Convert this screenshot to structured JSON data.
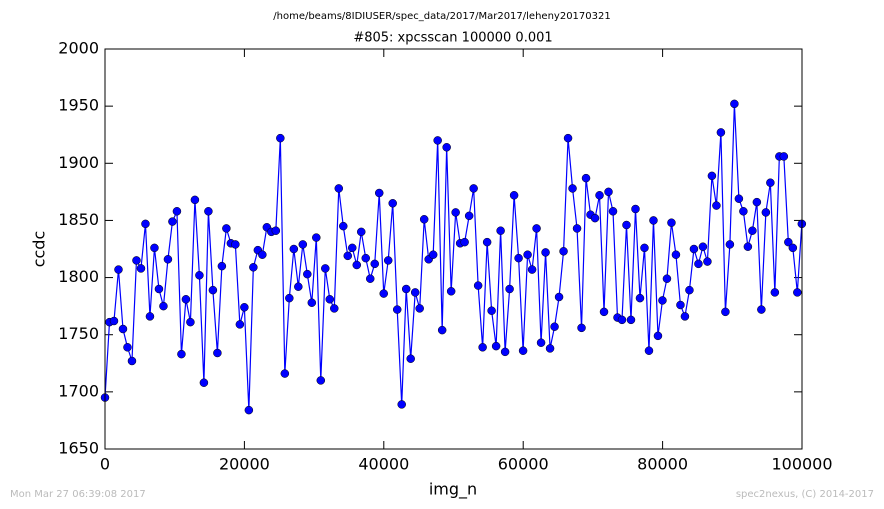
{
  "chart_data": {
    "type": "line",
    "suptitle": "/home/beams/8IDIUSER/spec_data/2017/Mar2017/leheny20170321",
    "title": "#805: xpcsscan 100000 0.001",
    "xlabel": "img_n",
    "ylabel": "ccdc",
    "footer_left": "Mon Mar 27 06:39:08 2017",
    "footer_right": "spec2nexus, (C) 2014-2017",
    "color": "#0000ff",
    "marker": "circle",
    "xlim": [
      0,
      100000
    ],
    "ylim": [
      1650,
      2000
    ],
    "xticks": [
      0,
      20000,
      40000,
      60000,
      80000,
      100000
    ],
    "yticks": [
      1650,
      1700,
      1750,
      1800,
      1850,
      1900,
      1950,
      2000
    ],
    "x": [
      0,
      645,
      1290,
      1935,
      2580,
      3225,
      3870,
      4515,
      5160,
      5805,
      6450,
      7095,
      7740,
      8385,
      9030,
      9675,
      10320,
      10965,
      11610,
      12255,
      12900,
      13545,
      14190,
      14835,
      15480,
      16125,
      16770,
      17415,
      18060,
      18705,
      19350,
      19995,
      20640,
      21285,
      21930,
      22575,
      23220,
      23865,
      24510,
      25155,
      25800,
      26445,
      27090,
      27735,
      28380,
      29025,
      29670,
      30315,
      30960,
      31605,
      32250,
      32895,
      33540,
      34185,
      34830,
      35475,
      36120,
      36765,
      37410,
      38055,
      38700,
      39345,
      39990,
      40635,
      41280,
      41925,
      42570,
      43215,
      43860,
      44505,
      45150,
      45795,
      46440,
      47085,
      47730,
      48375,
      49020,
      49665,
      50310,
      50955,
      51600,
      52245,
      52890,
      53535,
      54180,
      54825,
      55470,
      56115,
      56760,
      57405,
      58050,
      58695,
      59340,
      59985,
      60630,
      61275,
      61920,
      62565,
      63210,
      63855,
      64500,
      65145,
      65790,
      66435,
      67080,
      67725,
      68370,
      69015,
      69660,
      70305,
      70950,
      71595,
      72240,
      72885,
      73530,
      74175,
      74820,
      75465,
      76110,
      76755,
      77400,
      78045,
      78690,
      79335,
      79980,
      80625,
      81270,
      81915,
      82560,
      83205,
      83850,
      84495,
      85140,
      85785,
      86430,
      87075,
      87720,
      88365,
      89010,
      89655,
      90300,
      90945,
      91590,
      92235,
      92880,
      93525,
      94170,
      94815,
      95460,
      96105,
      96750,
      97395,
      98040,
      98685,
      99330,
      99975
    ],
    "values": [
      1695,
      1761,
      1762,
      1807,
      1755,
      1739,
      1727,
      1815,
      1808,
      1847,
      1766,
      1826,
      1790,
      1775,
      1816,
      1849,
      1858,
      1733,
      1781,
      1761,
      1868,
      1802,
      1708,
      1858,
      1789,
      1734,
      1810,
      1843,
      1830,
      1829,
      1759,
      1774,
      1684,
      1809,
      1824,
      1820,
      1844,
      1840,
      1841,
      1922,
      1716,
      1782,
      1825,
      1792,
      1829,
      1803,
      1778,
      1835,
      1710,
      1808,
      1781,
      1773,
      1878,
      1845,
      1819,
      1826,
      1811,
      1840,
      1817,
      1799,
      1812,
      1874,
      1786,
      1815,
      1865,
      1772,
      1689,
      1790,
      1729,
      1787,
      1773,
      1851,
      1816,
      1820,
      1920,
      1754,
      1914,
      1788,
      1857,
      1830,
      1831,
      1854,
      1878,
      1793,
      1739,
      1831,
      1771,
      1740,
      1841,
      1735,
      1790,
      1872,
      1817,
      1736,
      1820,
      1807,
      1843,
      1743,
      1822,
      1738,
      1757,
      1783,
      1823,
      1922,
      1878,
      1843,
      1756,
      1887,
      1855,
      1852,
      1872,
      1770,
      1875,
      1858,
      1765,
      1763,
      1846,
      1763,
      1860,
      1782,
      1826,
      1736,
      1850,
      1749,
      1780,
      1799,
      1848,
      1820,
      1776,
      1766,
      1789,
      1825,
      1812,
      1827,
      1814,
      1889,
      1863,
      1927,
      1770,
      1829,
      1952,
      1869,
      1858,
      1827,
      1841,
      1866,
      1772,
      1857,
      1883,
      1787,
      1906,
      1906,
      1831,
      1826,
      1787,
      1847
    ]
  }
}
